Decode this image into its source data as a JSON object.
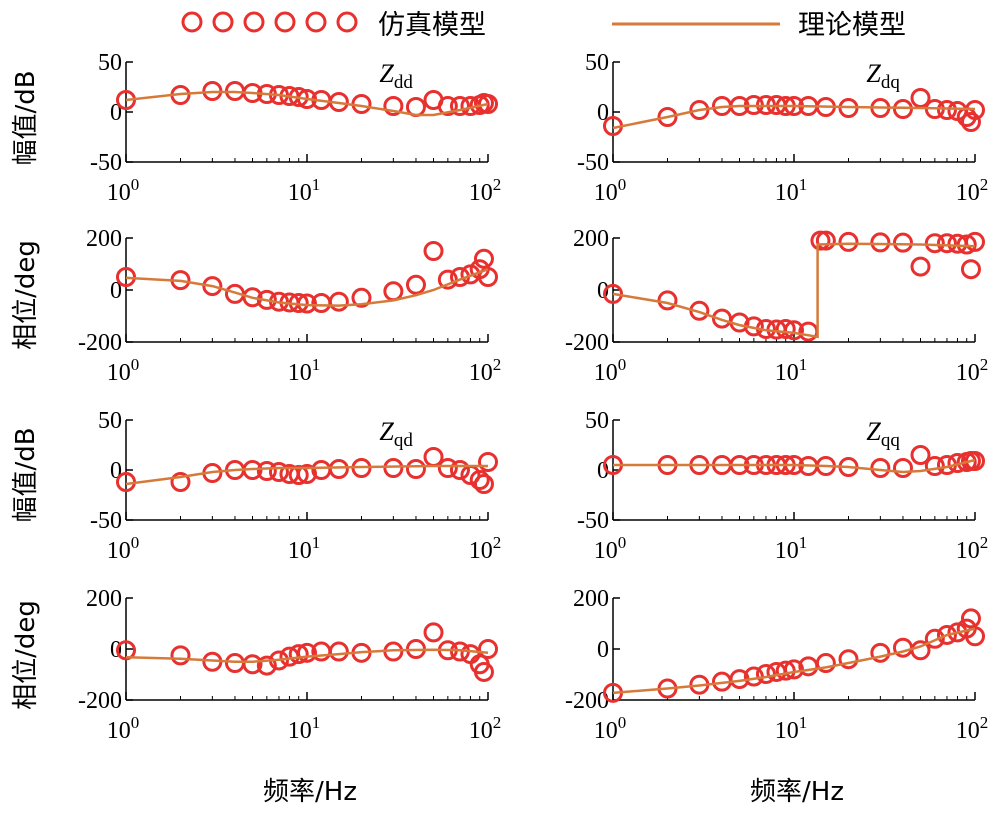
{
  "legend": {
    "simulation_label": "仿真模型",
    "theory_label": "理论模型"
  },
  "colors": {
    "simulation": "#e8302e",
    "theory": "#d67a3a",
    "axis": "#000000"
  },
  "labels": {
    "mag_ylabel": "幅值/dB",
    "phase_ylabel": "相位/deg",
    "xlabel": "频率/Hz"
  },
  "chart_data": [
    {
      "id": "dd-mag",
      "type": "line",
      "impedance": "dd",
      "quantity": "magnitude",
      "xscale": "log",
      "xlim": [
        1,
        100
      ],
      "ylim": [
        -50,
        50
      ],
      "xticks": [
        "10^0",
        "10^1",
        "10^2"
      ],
      "yticks": [
        50,
        0,
        -50
      ],
      "annotation": {
        "symbol": "Z",
        "sub": "dd"
      },
      "theory": [
        [
          1,
          12
        ],
        [
          2,
          18
        ],
        [
          3,
          20
        ],
        [
          4,
          20
        ],
        [
          5,
          19
        ],
        [
          7,
          17
        ],
        [
          10,
          13
        ],
        [
          15,
          9
        ],
        [
          20,
          6
        ],
        [
          30,
          1
        ],
        [
          40,
          -3
        ],
        [
          50,
          -3
        ],
        [
          70,
          2
        ],
        [
          100,
          8
        ]
      ],
      "simulation": [
        [
          1,
          12
        ],
        [
          2,
          17
        ],
        [
          3,
          21
        ],
        [
          4,
          21
        ],
        [
          5,
          19
        ],
        [
          6,
          18
        ],
        [
          7,
          17
        ],
        [
          8,
          16
        ],
        [
          9,
          15
        ],
        [
          10,
          13
        ],
        [
          12,
          12
        ],
        [
          15,
          10
        ],
        [
          20,
          8
        ],
        [
          30,
          6
        ],
        [
          40,
          5
        ],
        [
          50,
          12
        ],
        [
          60,
          6
        ],
        [
          70,
          6
        ],
        [
          80,
          6
        ],
        [
          90,
          7
        ],
        [
          95,
          9
        ],
        [
          100,
          8
        ]
      ]
    },
    {
      "id": "dq-mag",
      "type": "line",
      "impedance": "dq",
      "quantity": "magnitude",
      "xscale": "log",
      "xlim": [
        1,
        100
      ],
      "ylim": [
        -50,
        50
      ],
      "xticks": [
        "10^0",
        "10^1",
        "10^2"
      ],
      "yticks": [
        50,
        0,
        -50
      ],
      "annotation": {
        "symbol": "Z",
        "sub": "dq"
      },
      "theory": [
        [
          1,
          -16
        ],
        [
          2,
          -5
        ],
        [
          3,
          2
        ],
        [
          4,
          5
        ],
        [
          5,
          6
        ],
        [
          7,
          6
        ],
        [
          10,
          6
        ],
        [
          20,
          5
        ],
        [
          50,
          4
        ],
        [
          100,
          3
        ]
      ],
      "simulation": [
        [
          1,
          -14
        ],
        [
          2,
          -5
        ],
        [
          3,
          2
        ],
        [
          4,
          6
        ],
        [
          5,
          6
        ],
        [
          6,
          7
        ],
        [
          7,
          7
        ],
        [
          8,
          7
        ],
        [
          9,
          6
        ],
        [
          10,
          6
        ],
        [
          12,
          6
        ],
        [
          15,
          5
        ],
        [
          20,
          4
        ],
        [
          30,
          4
        ],
        [
          40,
          3
        ],
        [
          50,
          14
        ],
        [
          60,
          3
        ],
        [
          70,
          2
        ],
        [
          80,
          1
        ],
        [
          90,
          -5
        ],
        [
          95,
          -10
        ],
        [
          100,
          2
        ]
      ]
    },
    {
      "id": "dd-phase",
      "type": "line",
      "impedance": "dd",
      "quantity": "phase",
      "xscale": "log",
      "xlim": [
        1,
        100
      ],
      "ylim": [
        -200,
        200
      ],
      "xticks": [
        "10^0",
        "10^1",
        "10^2"
      ],
      "yticks": [
        200,
        0,
        -200
      ],
      "theory": [
        [
          1,
          47
        ],
        [
          2,
          35
        ],
        [
          3,
          15
        ],
        [
          4,
          -10
        ],
        [
          5,
          -30
        ],
        [
          7,
          -48
        ],
        [
          10,
          -58
        ],
        [
          15,
          -60
        ],
        [
          20,
          -55
        ],
        [
          30,
          -40
        ],
        [
          40,
          -20
        ],
        [
          50,
          0
        ],
        [
          70,
          40
        ],
        [
          100,
          80
        ]
      ],
      "simulation": [
        [
          1,
          50
        ],
        [
          2,
          38
        ],
        [
          3,
          15
        ],
        [
          4,
          -15
        ],
        [
          5,
          -28
        ],
        [
          6,
          -38
        ],
        [
          7,
          -45
        ],
        [
          8,
          -48
        ],
        [
          9,
          -50
        ],
        [
          10,
          -52
        ],
        [
          12,
          -50
        ],
        [
          15,
          -45
        ],
        [
          20,
          -30
        ],
        [
          30,
          -5
        ],
        [
          40,
          20
        ],
        [
          50,
          150
        ],
        [
          60,
          40
        ],
        [
          70,
          50
        ],
        [
          80,
          60
        ],
        [
          90,
          80
        ],
        [
          95,
          120
        ],
        [
          100,
          50
        ]
      ]
    },
    {
      "id": "dq-phase",
      "type": "line",
      "impedance": "dq",
      "quantity": "phase",
      "xscale": "log",
      "xlim": [
        1,
        100
      ],
      "ylim": [
        -200,
        200
      ],
      "xticks": [
        "10^0",
        "10^1",
        "10^2"
      ],
      "yticks": [
        200,
        0,
        -200
      ],
      "theory": [
        [
          1,
          -15
        ],
        [
          2,
          -50
        ],
        [
          3,
          -85
        ],
        [
          4,
          -115
        ],
        [
          5,
          -135
        ],
        [
          7,
          -155
        ],
        [
          10,
          -165
        ],
        [
          13.5,
          -180
        ],
        [
          13.5,
          175
        ],
        [
          20,
          178
        ],
        [
          50,
          175
        ],
        [
          100,
          168
        ]
      ],
      "simulation": [
        [
          1,
          -15
        ],
        [
          2,
          -40
        ],
        [
          3,
          -80
        ],
        [
          4,
          -110
        ],
        [
          5,
          -125
        ],
        [
          6,
          -140
        ],
        [
          7,
          -150
        ],
        [
          8,
          -152
        ],
        [
          9,
          -150
        ],
        [
          10,
          -155
        ],
        [
          12,
          -160
        ],
        [
          14,
          190
        ],
        [
          15,
          190
        ],
        [
          20,
          185
        ],
        [
          30,
          183
        ],
        [
          40,
          182
        ],
        [
          50,
          90
        ],
        [
          60,
          180
        ],
        [
          70,
          180
        ],
        [
          80,
          178
        ],
        [
          90,
          175
        ],
        [
          95,
          80
        ],
        [
          100,
          185
        ]
      ]
    },
    {
      "id": "qd-mag",
      "type": "line",
      "impedance": "qd",
      "quantity": "magnitude",
      "xscale": "log",
      "xlim": [
        1,
        100
      ],
      "ylim": [
        -50,
        50
      ],
      "xticks": [
        "10^0",
        "10^1",
        "10^2"
      ],
      "yticks": [
        50,
        0,
        -50
      ],
      "annotation": {
        "symbol": "Z",
        "sub": "qd"
      },
      "theory": [
        [
          1,
          -14
        ],
        [
          2,
          -7
        ],
        [
          3,
          -2
        ],
        [
          4,
          0
        ],
        [
          5,
          1
        ],
        [
          7,
          2
        ],
        [
          10,
          2
        ],
        [
          20,
          3
        ],
        [
          50,
          4
        ],
        [
          100,
          4
        ]
      ],
      "simulation": [
        [
          1,
          -12
        ],
        [
          2,
          -12
        ],
        [
          3,
          -3
        ],
        [
          4,
          0
        ],
        [
          5,
          0
        ],
        [
          6,
          -1
        ],
        [
          7,
          -2
        ],
        [
          8,
          -4
        ],
        [
          9,
          -5
        ],
        [
          10,
          -4
        ],
        [
          12,
          0
        ],
        [
          15,
          1
        ],
        [
          20,
          2
        ],
        [
          30,
          2
        ],
        [
          40,
          1
        ],
        [
          50,
          13
        ],
        [
          60,
          2
        ],
        [
          70,
          0
        ],
        [
          80,
          -5
        ],
        [
          90,
          -10
        ],
        [
          95,
          -14
        ],
        [
          100,
          8
        ]
      ]
    },
    {
      "id": "qq-mag",
      "type": "line",
      "impedance": "qq",
      "quantity": "magnitude",
      "xscale": "log",
      "xlim": [
        1,
        100
      ],
      "ylim": [
        -50,
        50
      ],
      "xticks": [
        "10^0",
        "10^1",
        "10^2"
      ],
      "yticks": [
        50,
        0,
        -50
      ],
      "annotation": {
        "symbol": "Z",
        "sub": "qq"
      },
      "theory": [
        [
          1,
          5
        ],
        [
          2,
          5
        ],
        [
          5,
          5
        ],
        [
          10,
          5
        ],
        [
          15,
          4
        ],
        [
          20,
          3
        ],
        [
          30,
          0
        ],
        [
          40,
          -2
        ],
        [
          50,
          -1
        ],
        [
          70,
          3
        ],
        [
          100,
          10
        ]
      ],
      "simulation": [
        [
          1,
          5
        ],
        [
          2,
          5
        ],
        [
          3,
          5
        ],
        [
          4,
          5
        ],
        [
          5,
          5
        ],
        [
          6,
          5
        ],
        [
          7,
          5
        ],
        [
          8,
          5
        ],
        [
          9,
          5
        ],
        [
          10,
          5
        ],
        [
          12,
          4
        ],
        [
          15,
          4
        ],
        [
          20,
          3
        ],
        [
          30,
          2
        ],
        [
          40,
          2
        ],
        [
          50,
          15
        ],
        [
          60,
          4
        ],
        [
          70,
          5
        ],
        [
          80,
          7
        ],
        [
          90,
          8
        ],
        [
          95,
          9
        ],
        [
          100,
          9
        ]
      ]
    },
    {
      "id": "qd-phase",
      "type": "line",
      "impedance": "qd",
      "quantity": "phase",
      "xscale": "log",
      "xlim": [
        1,
        100
      ],
      "ylim": [
        -200,
        200
      ],
      "xticks": [
        "10^0",
        "10^1",
        "10^2"
      ],
      "yticks": [
        200,
        0,
        -200
      ],
      "theory": [
        [
          1,
          -32
        ],
        [
          2,
          -38
        ],
        [
          3,
          -45
        ],
        [
          4,
          -50
        ],
        [
          5,
          -50
        ],
        [
          7,
          -42
        ],
        [
          10,
          -30
        ],
        [
          15,
          -20
        ],
        [
          20,
          -12
        ],
        [
          30,
          -5
        ],
        [
          50,
          -3
        ],
        [
          70,
          -5
        ],
        [
          100,
          -15
        ]
      ],
      "simulation": [
        [
          1,
          -5
        ],
        [
          2,
          -25
        ],
        [
          3,
          -50
        ],
        [
          4,
          -55
        ],
        [
          5,
          -60
        ],
        [
          6,
          -65
        ],
        [
          7,
          -45
        ],
        [
          8,
          -30
        ],
        [
          9,
          -20
        ],
        [
          10,
          -15
        ],
        [
          12,
          -10
        ],
        [
          15,
          -10
        ],
        [
          20,
          -15
        ],
        [
          30,
          -10
        ],
        [
          40,
          0
        ],
        [
          50,
          65
        ],
        [
          60,
          -5
        ],
        [
          70,
          -10
        ],
        [
          80,
          -20
        ],
        [
          90,
          -60
        ],
        [
          95,
          -90
        ],
        [
          100,
          0
        ]
      ]
    },
    {
      "id": "qq-phase",
      "type": "line",
      "impedance": "qq",
      "quantity": "phase",
      "xscale": "log",
      "xlim": [
        1,
        100
      ],
      "ylim": [
        -200,
        200
      ],
      "xticks": [
        "10^0",
        "10^1",
        "10^2"
      ],
      "yticks": [
        200,
        0,
        -200
      ],
      "theory": [
        [
          1,
          -172
        ],
        [
          2,
          -155
        ],
        [
          3,
          -143
        ],
        [
          4,
          -133
        ],
        [
          5,
          -125
        ],
        [
          7,
          -110
        ],
        [
          10,
          -90
        ],
        [
          15,
          -72
        ],
        [
          20,
          -55
        ],
        [
          30,
          -30
        ],
        [
          40,
          -10
        ],
        [
          50,
          10
        ],
        [
          70,
          55
        ],
        [
          100,
          80
        ]
      ],
      "simulation": [
        [
          1,
          -172
        ],
        [
          2,
          -155
        ],
        [
          3,
          -140
        ],
        [
          4,
          -128
        ],
        [
          5,
          -118
        ],
        [
          6,
          -108
        ],
        [
          7,
          -98
        ],
        [
          8,
          -90
        ],
        [
          9,
          -85
        ],
        [
          10,
          -80
        ],
        [
          12,
          -68
        ],
        [
          15,
          -55
        ],
        [
          20,
          -40
        ],
        [
          30,
          -15
        ],
        [
          40,
          5
        ],
        [
          50,
          -5
        ],
        [
          60,
          40
        ],
        [
          70,
          55
        ],
        [
          80,
          65
        ],
        [
          90,
          80
        ],
        [
          95,
          120
        ],
        [
          100,
          50
        ]
      ]
    }
  ]
}
